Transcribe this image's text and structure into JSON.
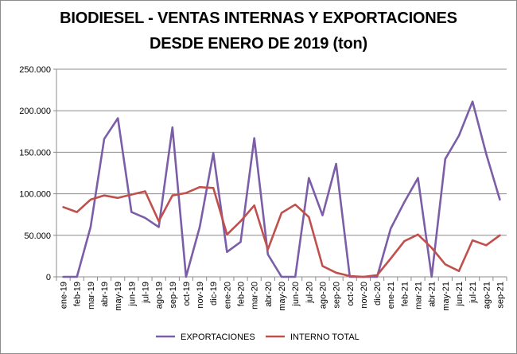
{
  "chart_data": {
    "type": "line",
    "title_line1": "BIODIESEL - VENTAS INTERNAS Y EXPORTACIONES",
    "title_line2": "DESDE ENERO DE 2019 (ton)",
    "xlabel": "",
    "ylabel": "",
    "ylim": [
      0,
      250000
    ],
    "yticks": [
      {
        "value": 0,
        "label": "0"
      },
      {
        "value": 50000,
        "label": "50.000"
      },
      {
        "value": 100000,
        "label": "100.000"
      },
      {
        "value": 150000,
        "label": "150.000"
      },
      {
        "value": 200000,
        "label": "200.000"
      },
      {
        "value": 250000,
        "label": "250.000"
      }
    ],
    "grid": true,
    "legend_position": "bottom",
    "categories": [
      "ene-19",
      "feb-19",
      "mar-19",
      "abr-19",
      "may-19",
      "jun-19",
      "jul-19",
      "ago-19",
      "sep-19",
      "oct-19",
      "nov-19",
      "dic-19",
      "ene-20",
      "feb-20",
      "mar-20",
      "abr-20",
      "may-20",
      "jun-20",
      "jul-20",
      "ago-20",
      "sep-20",
      "oct-20",
      "nov-20",
      "dic-20",
      "ene-21",
      "feb-21",
      "mar-21",
      "abr-21",
      "may-21",
      "jun-21",
      "jul-21",
      "ago-21",
      "sep-21"
    ],
    "series": [
      {
        "name": "EXPORTACIONES",
        "color": "#7b5ea7",
        "values": [
          0,
          0,
          60000,
          166000,
          191000,
          78000,
          71000,
          60000,
          180000,
          0,
          60000,
          149000,
          30000,
          42000,
          167000,
          27000,
          0,
          0,
          119000,
          74000,
          136000,
          0,
          0,
          0,
          58000,
          90000,
          119000,
          0,
          142000,
          170000,
          211000,
          148000,
          93000
        ]
      },
      {
        "name": "INTERNO  TOTAL",
        "color": "#c0504d",
        "values": [
          84000,
          78000,
          93000,
          98000,
          95000,
          99000,
          103000,
          67000,
          98000,
          101000,
          108000,
          107000,
          51000,
          67000,
          86000,
          33000,
          77000,
          87000,
          72000,
          13000,
          5000,
          1000,
          0,
          2000,
          22000,
          43000,
          51000,
          35000,
          15000,
          7000,
          44000,
          38000,
          50000
        ]
      }
    ]
  }
}
